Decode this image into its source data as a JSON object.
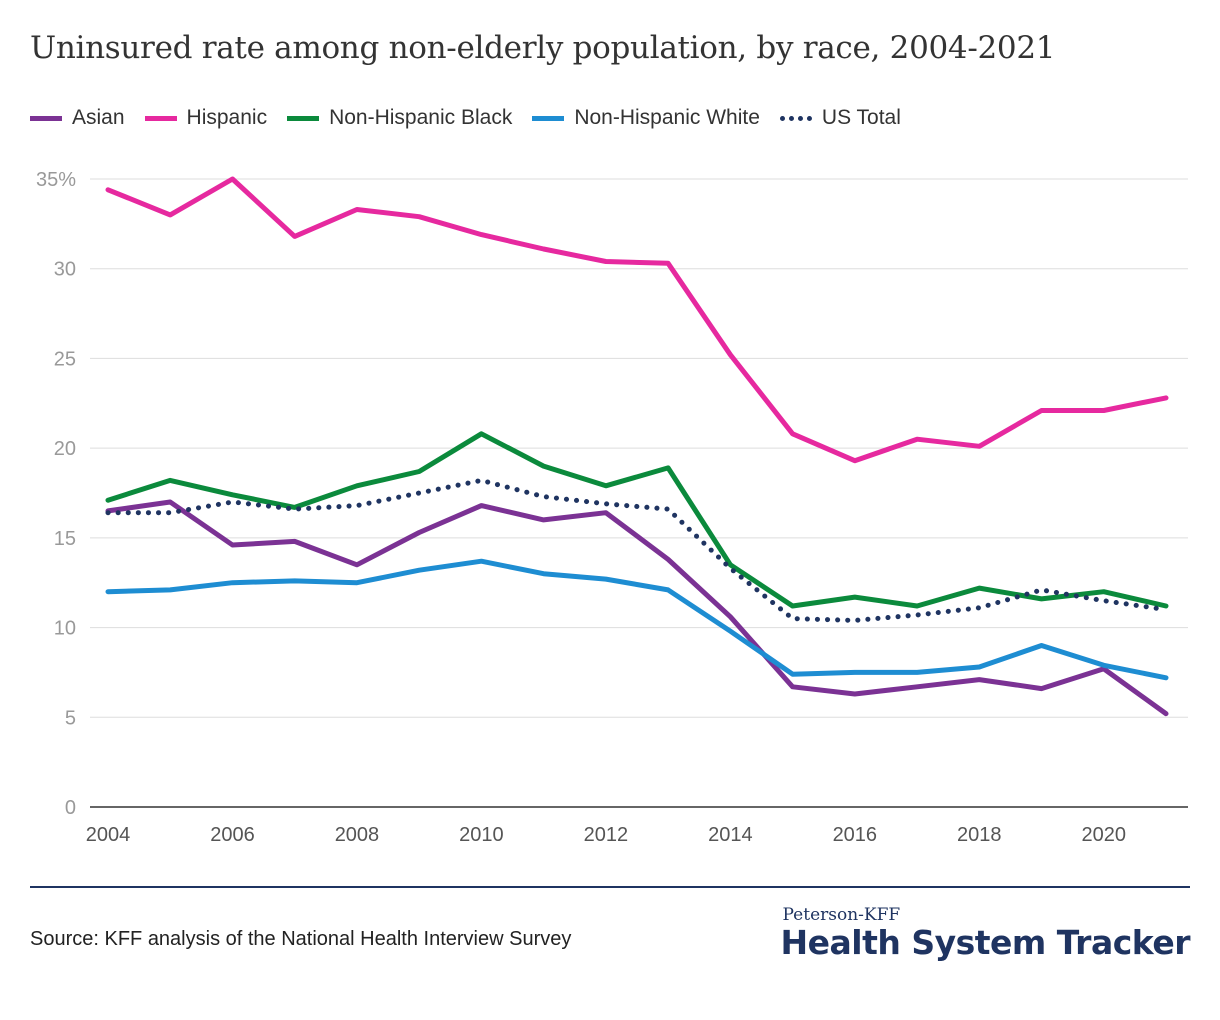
{
  "chart_data": {
    "type": "line",
    "title": "Uninsured rate among non-elderly population, by race, 2004-2021",
    "xlabel": "",
    "ylabel": "",
    "x": [
      2004,
      2005,
      2006,
      2007,
      2008,
      2009,
      2010,
      2011,
      2012,
      2013,
      2014,
      2015,
      2016,
      2017,
      2018,
      2019,
      2020,
      2021
    ],
    "xlim": [
      2004,
      2021
    ],
    "ylim": [
      0,
      35
    ],
    "x_ticks": [
      2004,
      2006,
      2008,
      2010,
      2012,
      2014,
      2016,
      2018,
      2020
    ],
    "y_ticks": [
      0,
      5,
      10,
      15,
      20,
      25,
      30,
      35
    ],
    "y_tick_labels": [
      "0",
      "5",
      "10",
      "15",
      "20",
      "25",
      "30",
      "35%"
    ],
    "grid": "horizontal",
    "legend_position": "top-left",
    "series": [
      {
        "name": "Asian",
        "color": "#7b3294",
        "style": "solid",
        "values": [
          16.5,
          17.0,
          14.6,
          14.8,
          13.5,
          15.3,
          16.8,
          16.0,
          16.4,
          13.8,
          10.6,
          6.7,
          6.3,
          6.7,
          7.1,
          6.6,
          7.7,
          5.2
        ]
      },
      {
        "name": "Hispanic",
        "color": "#e6299f",
        "style": "solid",
        "values": [
          34.4,
          33.0,
          35.0,
          31.8,
          33.3,
          32.9,
          31.9,
          31.1,
          30.4,
          30.3,
          25.2,
          20.8,
          19.3,
          20.5,
          20.1,
          22.1,
          22.1,
          22.8
        ]
      },
      {
        "name": "Non-Hispanic Black",
        "color": "#0b8a3c",
        "style": "solid",
        "values": [
          17.1,
          18.2,
          17.4,
          16.7,
          17.9,
          18.7,
          20.8,
          19.0,
          17.9,
          18.9,
          13.5,
          11.2,
          11.7,
          11.2,
          12.2,
          11.6,
          12.0,
          11.2
        ]
      },
      {
        "name": "Non-Hispanic White",
        "color": "#1e8dd2",
        "style": "solid",
        "values": [
          12.0,
          12.1,
          12.5,
          12.6,
          12.5,
          13.2,
          13.7,
          13.0,
          12.7,
          12.1,
          9.8,
          7.4,
          7.5,
          7.5,
          7.8,
          9.0,
          7.9,
          7.2
        ]
      },
      {
        "name": "US Total",
        "color": "#1f3461",
        "style": "dotted",
        "values": [
          16.4,
          16.4,
          17.0,
          16.6,
          16.8,
          17.5,
          18.2,
          17.3,
          16.9,
          16.6,
          13.3,
          10.5,
          10.4,
          10.7,
          11.1,
          12.1,
          11.5,
          11.0
        ]
      }
    ]
  },
  "footer": {
    "source": "Source: KFF analysis of the National Health Interview Survey",
    "brand_top": "Peterson-KFF",
    "brand_main": "Health System Tracker"
  }
}
